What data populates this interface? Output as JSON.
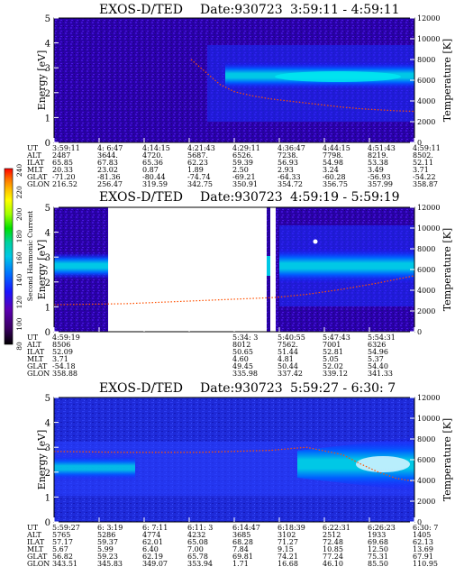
{
  "chart_data": [
    {
      "type": "heatmap",
      "title": "EXOS-D/TED",
      "date_label": "Date:930723",
      "time_range": "3:59:11 - 4:59:11",
      "ylabel": "Energy [eV]",
      "ylabel_right": "Temperature [K]",
      "yticks": [
        "0",
        "1",
        "2",
        "3",
        "4",
        "5"
      ],
      "ylim": [
        0,
        5
      ],
      "yticks_right": [
        "0",
        "2000",
        "4000",
        "6000",
        "8000",
        "10000",
        "12000"
      ],
      "ylim_right": [
        0,
        12000
      ],
      "table": {
        "labels": [
          "UT",
          "ALT",
          "ILAT",
          "MLT",
          "GLAT",
          "GLON"
        ],
        "columns": [
          [
            "3:59:11",
            "2487",
            "65.85",
            "20.33",
            "-71.20",
            "216.52"
          ],
          [
            "4: 6:47",
            "3644.",
            "67.83",
            "23.02",
            "-81.36",
            "256.47"
          ],
          [
            "4:14:15",
            "4720.",
            "65.36",
            "0.87",
            "-80.44",
            "319.59"
          ],
          [
            "4:21:43",
            "5687.",
            "62.23",
            "1.89",
            "-74.74",
            "342.75"
          ],
          [
            "4:29:11",
            "6526.",
            "59.39",
            "2.50",
            "-69.21",
            "350.91"
          ],
          [
            "4:36:47",
            "7238.",
            "56.93",
            "2.93",
            "-64.33",
            "354.72"
          ],
          [
            "4:44:15",
            "7798.",
            "54.98",
            "3.24",
            "-60.28",
            "356.75"
          ],
          [
            "4:51:43",
            "8219.",
            "53.38",
            "3.49",
            "-56.93",
            "357.99"
          ],
          [
            "4:59:11",
            "8502.",
            "52.11",
            "3.71",
            "-54.22",
            "358.87"
          ]
        ]
      },
      "temperature_trace": {
        "note_units": "K",
        "x_fraction": [
          0.38,
          0.42,
          0.46,
          0.5,
          0.55,
          0.6,
          0.65,
          0.7,
          0.75,
          0.8,
          0.85,
          0.9,
          0.95,
          1.0
        ],
        "y": [
          8000,
          6800,
          5600,
          4900,
          4500,
          4200,
          4000,
          3800,
          3600,
          3400,
          3250,
          3150,
          3050,
          3000
        ]
      }
    },
    {
      "type": "heatmap",
      "title": "EXOS-D/TED",
      "date_label": "Date:930723",
      "time_range": "4:59:19 - 5:59:19",
      "ylabel": "Energy [eV]",
      "ylabel_right": "Temperature [K]",
      "yticks": [
        "0",
        "1",
        "2",
        "3",
        "4",
        "5"
      ],
      "ylim": [
        0,
        5
      ],
      "yticks_right": [
        "0",
        "2000",
        "4000",
        "6000",
        "8000",
        "10000",
        "12000"
      ],
      "ylim_right": [
        0,
        12000
      ],
      "table": {
        "labels": [
          "UT",
          "ALT",
          "ILAT",
          "MLT",
          "GLAT",
          "GLON"
        ],
        "columns": [
          [
            "4:59:19",
            "8506",
            "52.09",
            "3.71",
            "-54.18",
            "358.88"
          ],
          [
            "",
            "",
            "",
            "",
            "",
            ""
          ],
          [
            "",
            "",
            "",
            "",
            "",
            ""
          ],
          [
            "",
            "",
            "",
            "",
            "",
            ""
          ],
          [
            "5:34: 3",
            "8012",
            "50.65",
            "4.60",
            "49.45",
            "335.98"
          ],
          [
            "5:40:55",
            "7562.",
            "51.44",
            "4.81",
            "50.44",
            "337.42"
          ],
          [
            "5:47:43",
            "7001",
            "52.81",
            "5.05",
            "52.02",
            "339.12"
          ],
          [
            "5:54:31",
            "6326",
            "54.96",
            "5.37",
            "54.40",
            "341.33"
          ],
          [
            "",
            "",
            "",
            "",
            "",
            ""
          ]
        ]
      },
      "temperature_trace": {
        "note_units": "K",
        "x_fraction": [
          0.0,
          0.1,
          0.2,
          0.61,
          0.7,
          0.8,
          0.9,
          1.0
        ],
        "y": [
          2600,
          2650,
          2700,
          3300,
          3600,
          4100,
          4700,
          5400
        ]
      }
    },
    {
      "type": "heatmap",
      "title": "EXOS-D/TED",
      "date_label": "Date:930723",
      "time_range": "5:59:27 - 6:30: 7",
      "ylabel": "Energy [eV]",
      "ylabel_right": "Temperature [K]",
      "yticks": [
        "0",
        "1",
        "2",
        "3",
        "4",
        "5"
      ],
      "ylim": [
        0,
        5
      ],
      "yticks_right": [
        "0",
        "2000",
        "4000",
        "6000",
        "8000",
        "10000",
        "12000"
      ],
      "ylim_right": [
        0,
        12000
      ],
      "table": {
        "labels": [
          "UT",
          "ALT",
          "ILAT",
          "MLT",
          "GLAT",
          "GLON"
        ],
        "columns": [
          [
            "5:59:27",
            "5765",
            "57.17",
            "5.67",
            "56.82",
            "343.51"
          ],
          [
            "6: 3:19",
            "5286",
            "59.37",
            "5.99",
            "59.23",
            "345.83"
          ],
          [
            "6: 7:11",
            "4774",
            "62.01",
            "6.40",
            "62.19",
            "349.07"
          ],
          [
            "6:11: 3",
            "4232",
            "65.08",
            "7.00",
            "65.78",
            "353.94"
          ],
          [
            "6:14:47",
            "3685",
            "68.28",
            "7.84",
            "69.81",
            "1.71"
          ],
          [
            "6:18:39",
            "3102",
            "71.27",
            "9.15",
            "74.21",
            "16.68"
          ],
          [
            "6:22:31",
            "2512",
            "72.48",
            "10.85",
            "77.24",
            "46.10"
          ],
          [
            "6:26:23",
            "1933",
            "69.68",
            "12.50",
            "75.31",
            "85.50"
          ],
          [
            "6:30: 7",
            "1405",
            "62.13",
            "13.69",
            "67.91",
            "110.95"
          ]
        ]
      },
      "temperature_trace": {
        "note_units": "K",
        "x_fraction": [
          0.0,
          0.2,
          0.4,
          0.6,
          0.7,
          0.8,
          0.85,
          0.9,
          0.95,
          1.0
        ],
        "y": [
          6800,
          6700,
          6700,
          6900,
          7200,
          6500,
          5600,
          4800,
          4200,
          3900
        ]
      }
    }
  ],
  "colorbar": {
    "label": "Second Harmonic Current",
    "ticks": [
      "80",
      "100",
      "120",
      "140",
      "160",
      "180",
      "200",
      "220",
      "240"
    ],
    "range": [
      80,
      240
    ],
    "colors": [
      "#000000",
      "#3a0062",
      "#5c00b5",
      "#1a14ff",
      "#0070ff",
      "#00c8e6",
      "#00d2a0",
      "#00e000",
      "#a0ff00",
      "#ffff00",
      "#ffc000",
      "#ff7000",
      "#ff0000"
    ]
  }
}
